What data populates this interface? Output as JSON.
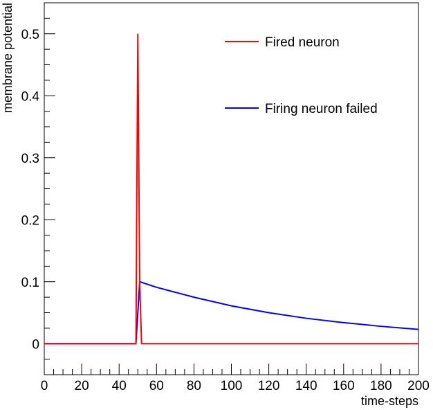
{
  "chart_data": {
    "type": "line",
    "title": "",
    "xlabel": "time-steps",
    "ylabel": "membrane potential",
    "xlim": [
      0,
      200
    ],
    "ylim": [
      -0.05,
      0.55
    ],
    "xticks": [
      0,
      20,
      40,
      60,
      80,
      100,
      120,
      140,
      160,
      180,
      200
    ],
    "yticks": [
      0,
      0.1,
      0.2,
      0.3,
      0.4,
      0.5
    ],
    "x_minor_step": 5,
    "y_minor_step": 0.025,
    "grid": false,
    "legend_position": "top-right",
    "legend_frame": false,
    "series": [
      {
        "name": "Fired neuron",
        "color": "#ff0000",
        "x": [
          0,
          49,
          50,
          51,
          52,
          200
        ],
        "y": [
          0,
          0,
          0.5,
          0.1,
          0,
          0
        ]
      },
      {
        "name": "Firing neuron failed",
        "color": "#0000ff",
        "x": [
          0,
          49,
          51,
          60,
          80,
          100,
          120,
          140,
          160,
          180,
          200
        ],
        "y": [
          0,
          0,
          0.1,
          0.091,
          0.075,
          0.061,
          0.05,
          0.041,
          0.034,
          0.028,
          0.023
        ]
      }
    ]
  }
}
